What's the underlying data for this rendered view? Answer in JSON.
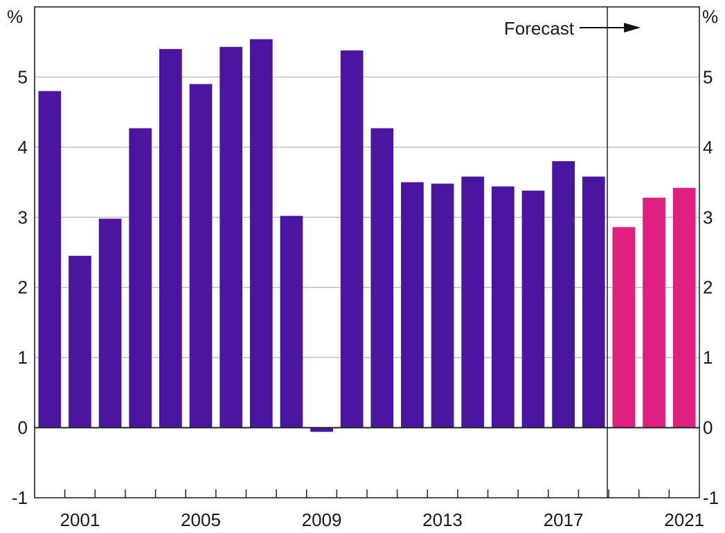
{
  "chart_data": {
    "type": "bar",
    "title": "",
    "xlabel": "",
    "ylabel_left": "%",
    "ylabel_right": "%",
    "ylim": [
      -1,
      6
    ],
    "yticks": [
      -1,
      0,
      1,
      2,
      3,
      4,
      5
    ],
    "grid": true,
    "x": [
      2000,
      2001,
      2002,
      2003,
      2004,
      2005,
      2006,
      2007,
      2008,
      2009,
      2010,
      2011,
      2012,
      2013,
      2014,
      2015,
      2016,
      2017,
      2018,
      2019,
      2020,
      2021
    ],
    "xtick_labels": [
      "2001",
      "2005",
      "2009",
      "2013",
      "2017",
      "2021"
    ],
    "series": [
      {
        "color": "#4A16A0",
        "values": [
          4.8,
          2.45,
          2.98,
          4.27,
          5.4,
          4.9,
          5.43,
          5.54,
          3.02,
          -0.06,
          5.38,
          4.27,
          3.5,
          3.48,
          3.58,
          3.44,
          3.38,
          3.8,
          3.58,
          null,
          null,
          null
        ]
      },
      {
        "color": "#E0207F",
        "values": [
          null,
          null,
          null,
          null,
          null,
          null,
          null,
          null,
          null,
          null,
          null,
          null,
          null,
          null,
          null,
          null,
          null,
          null,
          null,
          2.86,
          3.28,
          3.42
        ]
      }
    ],
    "annotation": {
      "text": "Forecast",
      "forecast_start_year": 2019
    }
  }
}
